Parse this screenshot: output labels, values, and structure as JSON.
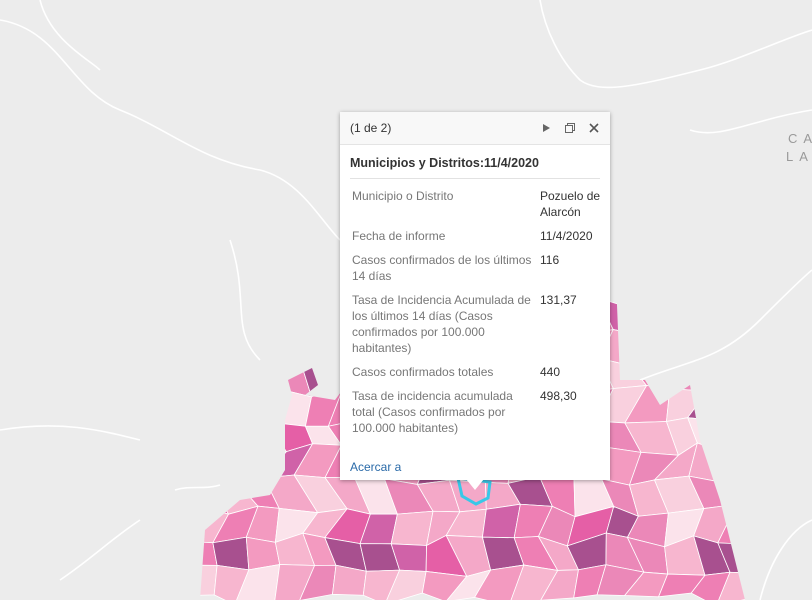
{
  "map_labels": [
    "CA",
    "LA"
  ],
  "popup": {
    "pager": "(1 de 2)",
    "title": "Municipios y Distritos:11/4/2020",
    "rows": [
      {
        "label": "Municipio o Distrito",
        "value": "Pozuelo de Alarcón"
      },
      {
        "label": "Fecha de informe",
        "value": "11/4/2020"
      },
      {
        "label": "Casos confirmados de los últimos 14 días",
        "value": "116"
      },
      {
        "label": "Tasa de Incidencia Acumulada de los últimos 14 días (Casos confirmados por 100.000 habitantes)",
        "value": "131,37"
      },
      {
        "label": "Casos confirmados totales",
        "value": "440"
      },
      {
        "label": "Tasa de incidencia acumulada total (Casos confirmados por 100.000 habitantes)",
        "value": "498,30"
      }
    ],
    "action": "Acercar a"
  }
}
